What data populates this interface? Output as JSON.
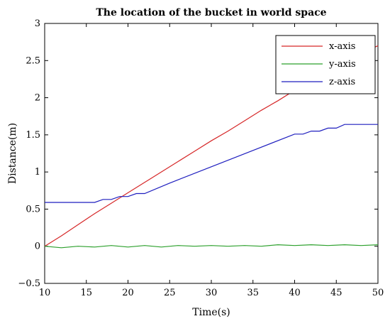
{
  "chart_data": {
    "type": "line",
    "title": "The location of the bucket in world space",
    "xlabel": "Time(s)",
    "ylabel": "Distance(m)",
    "xlim": [
      10,
      50
    ],
    "ylim": [
      -0.5,
      3
    ],
    "xticks": [
      10,
      15,
      20,
      25,
      30,
      35,
      40,
      45,
      50
    ],
    "xtick_labels": [
      "10",
      "15",
      "20",
      "25",
      "30",
      "35",
      "40",
      "45",
      "50"
    ],
    "yticks": [
      -0.5,
      0,
      0.5,
      1,
      1.5,
      2,
      2.5,
      3
    ],
    "ytick_labels": [
      "−0.5",
      "0",
      "0.5",
      "1",
      "1.5",
      "2",
      "2.5",
      "3"
    ],
    "grid": false,
    "legend_position": "top-right",
    "series": [
      {
        "name": "x-axis",
        "color": "#d62728",
        "x": [
          10,
          12,
          14,
          16,
          18,
          20,
          22,
          24,
          26,
          28,
          30,
          32,
          34,
          36,
          38,
          40,
          42,
          44,
          46,
          48,
          50
        ],
        "y": [
          0,
          0.14,
          0.29,
          0.44,
          0.58,
          0.72,
          0.86,
          1.0,
          1.14,
          1.28,
          1.42,
          1.55,
          1.69,
          1.83,
          1.96,
          2.1,
          2.23,
          2.37,
          2.5,
          2.6,
          2.7
        ]
      },
      {
        "name": "y-axis",
        "color": "#2ca02c",
        "x": [
          10,
          12,
          14,
          16,
          18,
          20,
          22,
          24,
          26,
          28,
          30,
          32,
          34,
          36,
          38,
          40,
          42,
          44,
          46,
          48,
          50
        ],
        "y": [
          0,
          -0.02,
          0.0,
          -0.01,
          0.01,
          -0.01,
          0.01,
          -0.01,
          0.01,
          0.0,
          0.01,
          0.0,
          0.01,
          0.0,
          0.02,
          0.01,
          0.02,
          0.01,
          0.02,
          0.01,
          0.02
        ]
      },
      {
        "name": "z-axis",
        "color": "#1f1fbf",
        "x": [
          10,
          16,
          17,
          18,
          19,
          20,
          21,
          22,
          25,
          30,
          35,
          40,
          41,
          42,
          43,
          44,
          45,
          46,
          47,
          50
        ],
        "y": [
          0.59,
          0.59,
          0.63,
          0.63,
          0.67,
          0.67,
          0.71,
          0.71,
          0.85,
          1.07,
          1.29,
          1.51,
          1.51,
          1.55,
          1.55,
          1.59,
          1.59,
          1.64,
          1.64,
          1.64
        ]
      }
    ]
  }
}
